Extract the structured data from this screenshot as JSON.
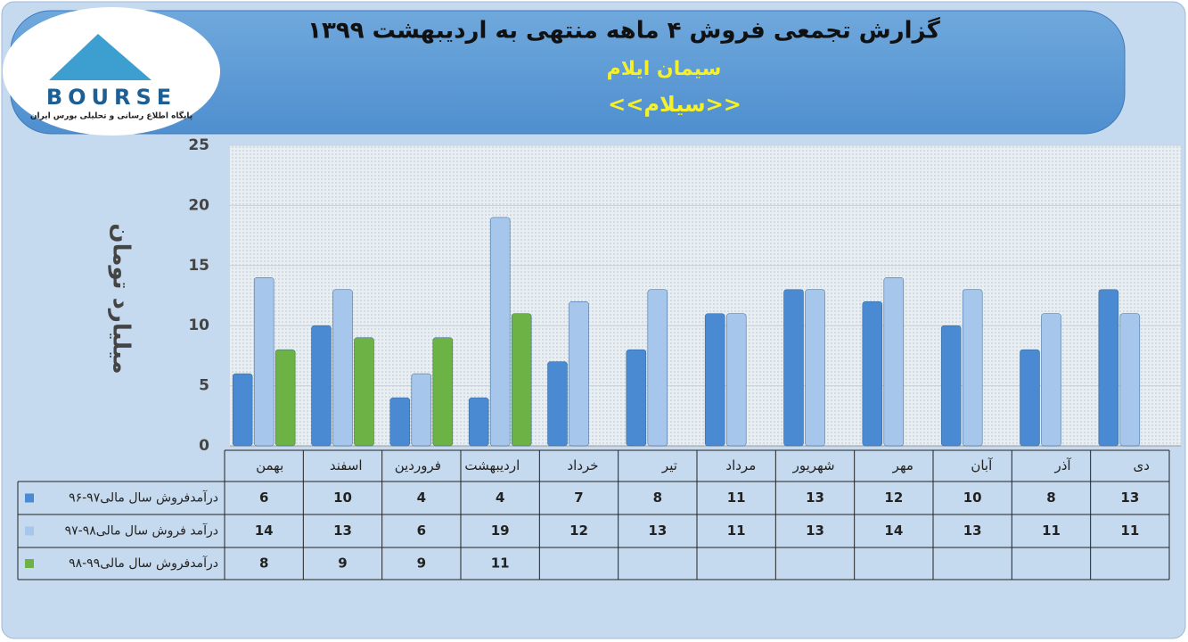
{
  "logo": {
    "name": "BOURSE",
    "tagline": "پایگاه اطلاع رسانی و تحلیلی بورس ایران"
  },
  "chart_data": {
    "type": "bar",
    "title": "گزارش تجمعی فروش ۴ ماهه منتهی به اردیبهشت ۱۳۹۹",
    "subtitle": "سیمان ایلام",
    "symbol": "<<سیلام>>",
    "y_label": "میلیارد تومان",
    "categories": [
      "بهمن",
      "اسفند",
      "فروردین",
      "اردیبهشت",
      "خرداد",
      "تیر",
      "مرداد",
      "شهریور",
      "مهر",
      "آبان",
      "آذر",
      "دی"
    ],
    "series": [
      {
        "name": "درآمدفروش سال مالی۹۷-۹۶",
        "color": "#4a8ad2",
        "values": [
          6,
          10,
          4,
          4,
          7,
          8,
          11,
          13,
          12,
          10,
          8,
          13
        ]
      },
      {
        "name": "درآمد فروش سال مالی۹۸-۹۷",
        "color": "#a7c6ec",
        "values": [
          14,
          13,
          6,
          19,
          12,
          13,
          11,
          13,
          14,
          13,
          11,
          11
        ]
      },
      {
        "name": "درآمدفروش سال مالی۹۹-۹۸",
        "color": "#6cb244",
        "values": [
          8,
          9,
          9,
          11,
          null,
          null,
          null,
          null,
          null,
          null,
          null,
          null
        ]
      }
    ],
    "ylim": [
      0,
      25
    ],
    "yticks": [
      0,
      5,
      10,
      15,
      20,
      25
    ],
    "grid": true
  }
}
